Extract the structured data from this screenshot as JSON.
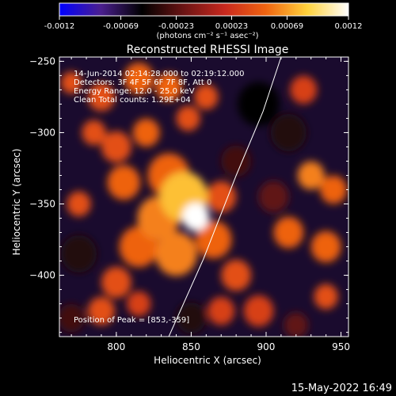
{
  "chart_data": {
    "type": "heatmap",
    "title": "Reconstructed RHESSI Image",
    "xlabel": "Heliocentric X (arcsec)",
    "ylabel": "Heliocentric Y (arcsec)",
    "xlim": [
      762,
      955
    ],
    "ylim": [
      -443,
      -247
    ],
    "x_ticks": [
      800,
      850,
      900,
      950
    ],
    "y_ticks": [
      -250,
      -300,
      -350,
      -400
    ],
    "colorbar": {
      "ticks": [
        -0.0012,
        -0.00069,
        -0.00023,
        0.00023,
        0.00069,
        0.0012
      ],
      "tick_labels": [
        "-0.0012",
        "-0.00069",
        "-0.00023",
        "0.00023",
        "0.00069",
        "0.0012"
      ],
      "range": [
        -0.0012,
        0.0012
      ],
      "unit_label": "(photons cm⁻² s⁻¹ asec⁻²)",
      "colors": [
        "#0000ff",
        "#4b1f8f",
        "#000000",
        "#6a1414",
        "#c8281e",
        "#f06410",
        "#ffd23c",
        "#ffffff"
      ]
    },
    "annotations": [
      "14-Jun-2014 02:14:28.000 to 02:19:12.000",
      "Detectors: 3F 4F 5F 6F 7F 8F, Att 0",
      "Energy Range: 12.0 - 25.0 keV",
      "Clean     Total counts: 1.29E+04"
    ],
    "peak_label": "Position of Peak = [853,-359]",
    "peak": [
      853,
      -359
    ],
    "limb_line": [
      [
        835,
        -443
      ],
      [
        858,
        -389
      ],
      [
        880,
        -330
      ],
      [
        898,
        -285
      ],
      [
        910,
        -247
      ]
    ],
    "blobs": [
      {
        "x": 853,
        "y": -359,
        "value": 0.0012,
        "r": 9
      },
      {
        "x": 845,
        "y": -345,
        "value": 0.0008,
        "r": 16
      },
      {
        "x": 835,
        "y": -330,
        "value": 0.0005,
        "r": 14
      },
      {
        "x": 828,
        "y": -360,
        "value": 0.0006,
        "r": 14
      },
      {
        "x": 815,
        "y": -380,
        "value": 0.0005,
        "r": 13
      },
      {
        "x": 840,
        "y": -385,
        "value": 0.0006,
        "r": 14
      },
      {
        "x": 865,
        "y": -375,
        "value": 0.0005,
        "r": 12
      },
      {
        "x": 870,
        "y": -345,
        "value": 0.0004,
        "r": 10
      },
      {
        "x": 805,
        "y": -335,
        "value": 0.0005,
        "r": 11
      },
      {
        "x": 800,
        "y": -310,
        "value": 0.0004,
        "r": 10
      },
      {
        "x": 820,
        "y": -300,
        "value": 0.0005,
        "r": 9
      },
      {
        "x": 785,
        "y": -300,
        "value": 0.0004,
        "r": 8
      },
      {
        "x": 790,
        "y": -275,
        "value": 0.0004,
        "r": 9
      },
      {
        "x": 815,
        "y": -262,
        "value": 0.0005,
        "r": 10
      },
      {
        "x": 835,
        "y": -268,
        "value": 0.0005,
        "r": 9
      },
      {
        "x": 848,
        "y": -290,
        "value": 0.0004,
        "r": 8
      },
      {
        "x": 860,
        "y": -275,
        "value": 0.0004,
        "r": 8
      },
      {
        "x": 800,
        "y": -405,
        "value": 0.0004,
        "r": 10
      },
      {
        "x": 790,
        "y": -425,
        "value": 0.0004,
        "r": 9
      },
      {
        "x": 815,
        "y": -420,
        "value": 0.0003,
        "r": 8
      },
      {
        "x": 880,
        "y": -400,
        "value": 0.0004,
        "r": 10
      },
      {
        "x": 870,
        "y": -425,
        "value": 0.0003,
        "r": 9
      },
      {
        "x": 895,
        "y": -425,
        "value": 0.0003,
        "r": 10
      },
      {
        "x": 915,
        "y": -370,
        "value": 0.0005,
        "r": 10
      },
      {
        "x": 930,
        "y": -330,
        "value": 0.0006,
        "r": 9
      },
      {
        "x": 945,
        "y": -340,
        "value": 0.0005,
        "r": 9
      },
      {
        "x": 940,
        "y": -380,
        "value": 0.0005,
        "r": 10
      },
      {
        "x": 940,
        "y": -415,
        "value": 0.0004,
        "r": 8
      },
      {
        "x": 925,
        "y": -270,
        "value": 0.0003,
        "r": 9
      },
      {
        "x": 770,
        "y": -265,
        "value": 0.0004,
        "r": 7
      },
      {
        "x": 775,
        "y": -350,
        "value": 0.0004,
        "r": 8
      },
      {
        "x": 895,
        "y": -280,
        "value": -0.0005,
        "r": 14
      },
      {
        "x": 915,
        "y": -300,
        "value": -0.0004,
        "r": 12
      },
      {
        "x": 880,
        "y": -320,
        "value": -0.0003,
        "r": 10
      },
      {
        "x": 775,
        "y": -385,
        "value": -0.0004,
        "r": 12
      },
      {
        "x": 770,
        "y": -430,
        "value": -0.0003,
        "r": 9
      },
      {
        "x": 850,
        "y": -430,
        "value": -0.0004,
        "r": 10
      },
      {
        "x": 905,
        "y": -345,
        "value": -0.0002,
        "r": 10
      },
      {
        "x": 920,
        "y": -435,
        "value": -0.0002,
        "r": 8
      }
    ]
  },
  "footer": {
    "date": "15-May-2022 16:49"
  }
}
